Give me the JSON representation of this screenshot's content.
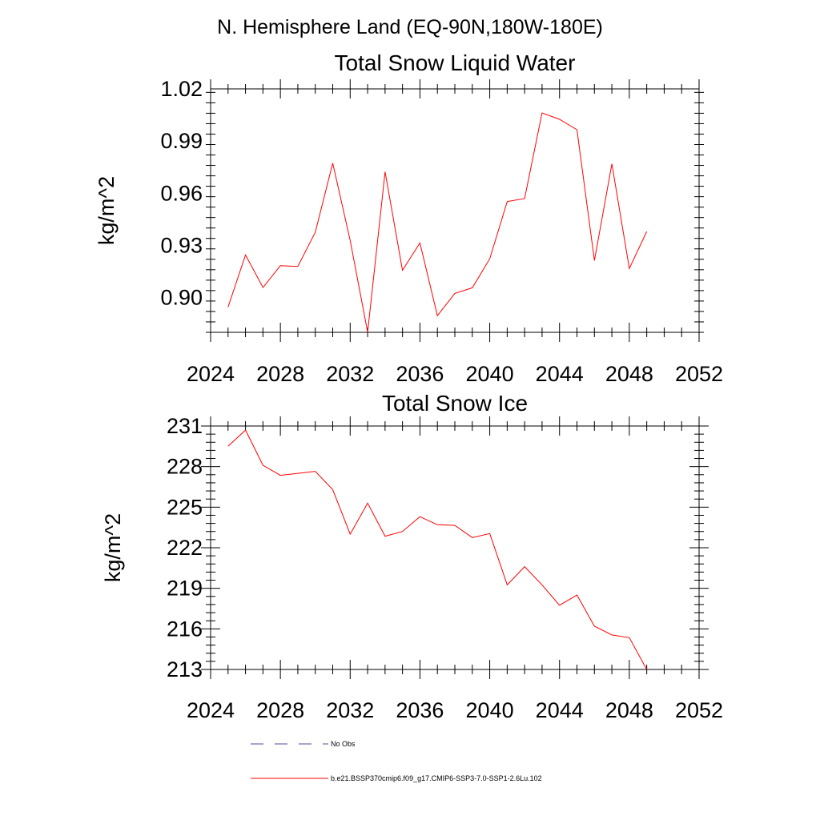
{
  "page_title": "N. Hemisphere Land (EQ-90N,180W-180E)",
  "colors": {
    "series": "#ff0000",
    "obs": "#4d4d99",
    "axis": "#000000"
  },
  "legend": [
    {
      "label": "No Obs",
      "style": "dashed",
      "color": "#4d4d99"
    },
    {
      "label": "b.e21.BSSP370cmip6.f09_g17.CMIP6-SSP3-7.0-SSP1-2.6Lu.102",
      "style": "solid",
      "color": "#ff0000"
    }
  ],
  "chart_data": [
    {
      "type": "line",
      "title": "Total Snow Liquid Water",
      "xlabel": "",
      "ylabel": "kg/m^2",
      "xlim": [
        2024,
        2052
      ],
      "ylim": [
        0.88,
        1.02
      ],
      "xticks": [
        2024,
        2028,
        2032,
        2036,
        2040,
        2044,
        2048,
        2052
      ],
      "yticks": [
        0.9,
        0.93,
        0.96,
        0.99,
        1.02
      ],
      "ytick_labels": [
        "0.90",
        "0.93",
        "0.96",
        "0.99",
        "1.02"
      ],
      "grid": false,
      "x": [
        2025,
        2026,
        2027,
        2028,
        2029,
        2030,
        2031,
        2032,
        2033,
        2034,
        2035,
        2036,
        2037,
        2038,
        2039,
        2040,
        2041,
        2042,
        2043,
        2044,
        2045,
        2046,
        2047,
        2048,
        2049
      ],
      "series": [
        {
          "values": [
            0.8945,
            0.9245,
            0.9058,
            0.9183,
            0.9179,
            0.9375,
            0.9773,
            0.9328,
            0.8801,
            0.9723,
            0.9157,
            0.9314,
            0.8896,
            0.9024,
            0.9056,
            0.9223,
            0.9552,
            0.9569,
            1.0062,
            1.0025,
            0.9965,
            0.9213,
            0.9769,
            0.9167,
            0.938
          ]
        }
      ]
    },
    {
      "type": "line",
      "title": "Total Snow Ice",
      "xlabel": "",
      "ylabel": "kg/m^2",
      "xlim": [
        2024,
        2052
      ],
      "ylim": [
        213,
        231
      ],
      "xticks": [
        2024,
        2028,
        2032,
        2036,
        2040,
        2044,
        2048,
        2052
      ],
      "yticks": [
        213,
        216,
        219,
        222,
        225,
        228,
        231
      ],
      "ytick_labels": [
        "213",
        "216",
        "219",
        "222",
        "225",
        "228",
        "231"
      ],
      "grid": false,
      "x": [
        2025,
        2026,
        2027,
        2028,
        2029,
        2030,
        2031,
        2032,
        2033,
        2034,
        2035,
        2036,
        2037,
        2038,
        2039,
        2040,
        2041,
        2042,
        2043,
        2044,
        2045,
        2046,
        2047,
        2048,
        2049
      ],
      "series": [
        {
          "values": [
            229.5,
            230.7,
            228.1,
            227.35,
            227.5,
            227.65,
            226.3,
            223.0,
            225.3,
            222.85,
            223.2,
            224.3,
            223.7,
            223.65,
            222.75,
            223.05,
            219.25,
            220.6,
            219.25,
            217.75,
            218.5,
            216.2,
            215.55,
            215.35,
            213.0
          ]
        }
      ]
    }
  ]
}
